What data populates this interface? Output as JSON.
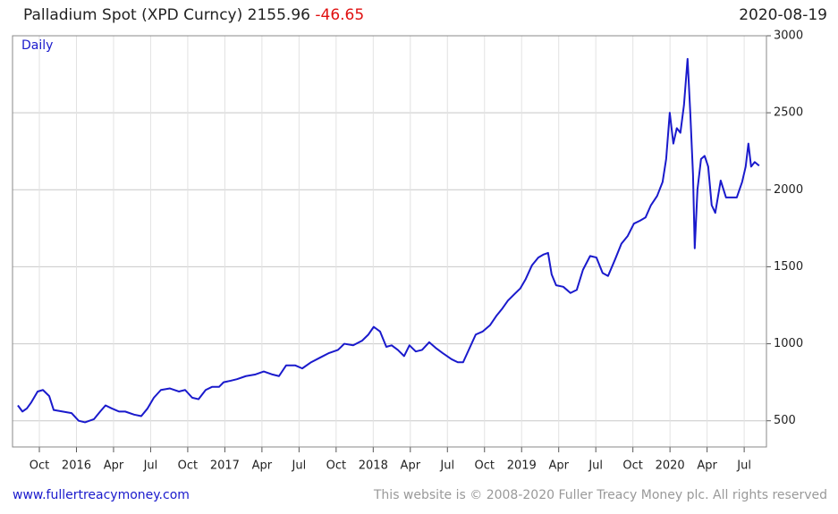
{
  "chart_data": {
    "type": "line",
    "title": "Palladium Spot (XPD Curncy)",
    "last_price": 2155.96,
    "change": -46.65,
    "date": "2020-08-19",
    "interval": "Daily",
    "grid": true,
    "xlim": [
      -2.17,
      58.8
    ],
    "ylim": [
      330,
      3000
    ],
    "yticks": [
      500,
      1000,
      1500,
      2000,
      2500,
      3000
    ],
    "xticks": [
      {
        "value": 0,
        "label": "Oct"
      },
      {
        "value": 3,
        "label": "2016"
      },
      {
        "value": 6,
        "label": "Apr"
      },
      {
        "value": 9,
        "label": "Jul"
      },
      {
        "value": 12,
        "label": "Oct"
      },
      {
        "value": 15,
        "label": "2017"
      },
      {
        "value": 18,
        "label": "Apr"
      },
      {
        "value": 21,
        "label": "Jul"
      },
      {
        "value": 24,
        "label": "Oct"
      },
      {
        "value": 27,
        "label": "2018"
      },
      {
        "value": 30,
        "label": "Apr"
      },
      {
        "value": 33,
        "label": "Jul"
      },
      {
        "value": 36,
        "label": "Oct"
      },
      {
        "value": 39,
        "label": "2019"
      },
      {
        "value": 42,
        "label": "Apr"
      },
      {
        "value": 45,
        "label": "Jul"
      },
      {
        "value": 48,
        "label": "Oct"
      },
      {
        "value": 51,
        "label": "2020"
      },
      {
        "value": 54,
        "label": "Apr"
      },
      {
        "value": 57,
        "label": "Jul"
      }
    ],
    "series": [
      {
        "name": "Palladium Spot",
        "color": "#1a1acc",
        "x": [
          -1.74,
          -1.37,
          -1.01,
          -0.65,
          -0.14,
          0.29,
          0.8,
          1.16,
          1.88,
          2.6,
          3.18,
          3.69,
          4.41,
          4.92,
          5.35,
          5.86,
          6.44,
          6.94,
          7.66,
          8.24,
          8.75,
          9.26,
          9.83,
          10.56,
          11.28,
          11.79,
          12.36,
          12.87,
          13.45,
          13.96,
          14.53,
          14.9,
          15.47,
          15.98,
          16.7,
          17.43,
          18.15,
          18.87,
          19.38,
          19.96,
          20.68,
          21.26,
          21.98,
          22.7,
          23.43,
          24.15,
          24.66,
          25.38,
          26.1,
          26.61,
          27.04,
          27.55,
          28.06,
          28.49,
          28.99,
          29.5,
          29.93,
          30.44,
          30.95,
          31.53,
          32.1,
          32.61,
          33.33,
          33.84,
          34.27,
          34.78,
          35.29,
          35.86,
          36.44,
          36.95,
          37.45,
          37.89,
          38.39,
          38.9,
          39.33,
          39.84,
          40.35,
          40.78,
          41.14,
          41.43,
          41.79,
          42.37,
          42.95,
          43.46,
          43.96,
          44.54,
          45.05,
          45.55,
          45.99,
          46.57,
          47.07,
          47.58,
          48.08,
          48.59,
          49.02,
          49.46,
          49.96,
          50.4,
          50.69,
          50.98,
          51.27,
          51.55,
          51.84,
          52.13,
          52.42,
          52.64,
          52.86,
          53.0,
          53.22,
          53.51,
          53.8,
          54.09,
          54.37,
          54.66,
          55.1,
          55.53,
          55.97,
          56.4,
          56.83,
          57.12,
          57.34,
          57.56,
          57.85,
          58.21
        ],
        "values": [
          600,
          560,
          580,
          620,
          690,
          700,
          660,
          570,
          560,
          550,
          500,
          490,
          510,
          560,
          600,
          580,
          560,
          560,
          540,
          530,
          580,
          650,
          700,
          710,
          690,
          700,
          650,
          640,
          700,
          720,
          720,
          750,
          760,
          770,
          790,
          800,
          820,
          800,
          790,
          860,
          860,
          840,
          880,
          910,
          940,
          960,
          1000,
          990,
          1020,
          1060,
          1110,
          1080,
          980,
          990,
          960,
          920,
          990,
          950,
          960,
          1010,
          970,
          940,
          900,
          880,
          880,
          970,
          1060,
          1080,
          1120,
          1180,
          1230,
          1280,
          1320,
          1360,
          1420,
          1510,
          1560,
          1580,
          1590,
          1450,
          1380,
          1370,
          1330,
          1350,
          1480,
          1570,
          1560,
          1460,
          1440,
          1550,
          1650,
          1700,
          1780,
          1800,
          1820,
          1900,
          1960,
          2050,
          2200,
          2500,
          2300,
          2400,
          2370,
          2550,
          2850,
          2500,
          2100,
          1620,
          2000,
          2200,
          2220,
          2150,
          1900,
          1850,
          2060,
          1950,
          1950,
          1950,
          2050,
          2150,
          2300,
          2150,
          2180,
          2156
        ]
      }
    ]
  },
  "footer": {
    "site": "www.fullertreacymoney.com",
    "copyright": "This website is © 2008-2020 Fuller Treacy Money plc. All rights reserved"
  }
}
